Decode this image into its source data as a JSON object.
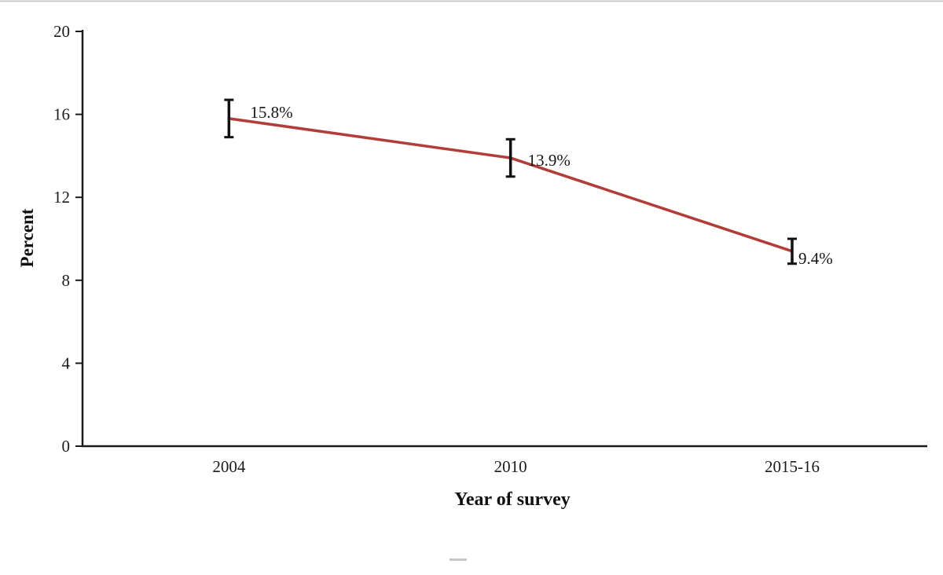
{
  "chart_data": {
    "type": "line",
    "title": "",
    "xlabel": "Year of survey",
    "ylabel": "Percent",
    "categories": [
      "2004",
      "2010",
      "2015-16"
    ],
    "values": [
      15.8,
      13.9,
      9.4
    ],
    "data_labels": [
      "15.8%",
      "13.9%",
      "9.4%"
    ],
    "error_bars_plus_minus": [
      0.9,
      0.9,
      0.6
    ],
    "ylim": [
      0,
      20
    ],
    "yticks": [
      0,
      4,
      8,
      12,
      16,
      20
    ],
    "ytick_labels": [
      "0",
      "4",
      "8",
      "12",
      "16",
      "20"
    ],
    "line_color": "#b23c38",
    "error_bar_color": "#111111",
    "axis_color": "#1a1a1a",
    "grid": false,
    "legend": false
  }
}
